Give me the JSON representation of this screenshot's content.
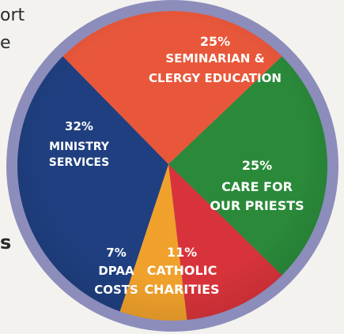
{
  "side_text": {
    "top": "ort",
    "middle": "e",
    "bottom": "s"
  },
  "chart_data": {
    "type": "pie",
    "title": "",
    "slices": [
      {
        "id": "seminarian",
        "pct_label": "25%",
        "lines": [
          "SEMINARIAN &",
          "CLERGY EDUCATION"
        ],
        "value": 25,
        "color": "#e8573a"
      },
      {
        "id": "care",
        "pct_label": "25%",
        "lines": [
          "CARE FOR",
          "OUR PRIESTS"
        ],
        "value": 25,
        "color": "#2a8a3a"
      },
      {
        "id": "charities",
        "pct_label": "11%",
        "lines": [
          "CATHOLIC",
          "CHARITIES"
        ],
        "value": 11,
        "color": "#d8333a"
      },
      {
        "id": "dpaa",
        "pct_label": "7%",
        "lines": [
          "DPAA",
          "COSTS"
        ],
        "value": 7,
        "color": "#f0a12b"
      },
      {
        "id": "ministry",
        "pct_label": "32%",
        "lines": [
          "MINISTRY",
          "SERVICES"
        ],
        "value": 32,
        "color": "#1f3f80"
      }
    ],
    "ring_color": "#8c8dbb"
  }
}
